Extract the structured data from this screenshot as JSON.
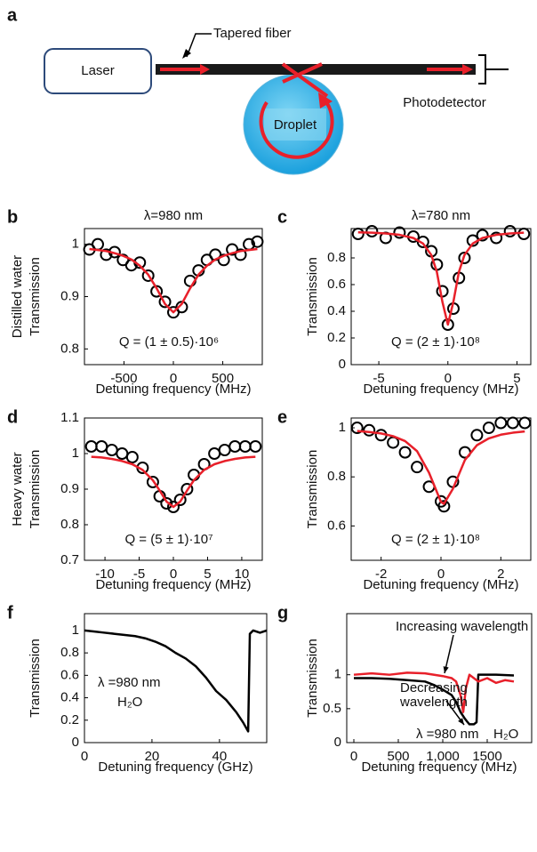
{
  "diagram": {
    "panel_label": "a",
    "laser": "Laser",
    "fiber": "Tapered fiber",
    "droplet": "Droplet",
    "detector": "Photodetector"
  },
  "chart_data": [
    {
      "type": "scatter",
      "panel_label": "b",
      "title": "λ=980 nm",
      "ylabel": [
        "Distilled water",
        "Transmission"
      ],
      "xlabel": "Detuning frequency (MHz)",
      "annotations": [
        "Q = (1 ± 0.5)·10⁶"
      ],
      "xlim": [
        -900,
        900
      ],
      "xticks": [
        -500,
        0,
        500
      ],
      "ylim": [
        0.77,
        1.03
      ],
      "yticks": [
        0.8,
        0.9,
        1
      ],
      "series": [
        {
          "mode": "markers",
          "color": "#000000",
          "x": [
            -850,
            -765,
            -680,
            -595,
            -510,
            -425,
            -340,
            -255,
            -170,
            -85,
            0,
            85,
            170,
            255,
            340,
            425,
            510,
            595,
            680,
            765,
            850
          ],
          "values": [
            0.99,
            1.0,
            0.98,
            0.985,
            0.97,
            0.96,
            0.965,
            0.94,
            0.91,
            0.89,
            0.87,
            0.88,
            0.93,
            0.95,
            0.97,
            0.98,
            0.97,
            0.99,
            0.98,
            1.0,
            1.005
          ]
        },
        {
          "mode": "line",
          "color": "#e8202a",
          "x": [
            -850,
            -765,
            -680,
            -595,
            -510,
            -425,
            -340,
            -255,
            -170,
            -85,
            0,
            85,
            170,
            255,
            340,
            425,
            510,
            595,
            680,
            765,
            850
          ],
          "values": [
            0.991,
            0.989,
            0.987,
            0.983,
            0.978,
            0.971,
            0.959,
            0.942,
            0.916,
            0.886,
            0.87,
            0.886,
            0.916,
            0.942,
            0.959,
            0.971,
            0.978,
            0.983,
            0.987,
            0.989,
            0.991
          ]
        }
      ]
    },
    {
      "type": "scatter",
      "panel_label": "c",
      "title": "λ=780 nm",
      "ylabel": [
        "Transmission"
      ],
      "xlabel": "Detuning frequency (MHz)",
      "annotations": [
        "Q = (2 ± 1)·10⁸"
      ],
      "xlim": [
        -7,
        6
      ],
      "xticks": [
        -5,
        0,
        5
      ],
      "ylim": [
        0,
        1.02
      ],
      "yticks": [
        0,
        0.2,
        0.4,
        0.6,
        0.8
      ],
      "series": [
        {
          "mode": "markers",
          "color": "#000000",
          "x": [
            -6.5,
            -5.5,
            -4.5,
            -3.5,
            -2.5,
            -1.8,
            -1.2,
            -0.8,
            -0.4,
            0,
            0.4,
            0.8,
            1.2,
            1.8,
            2.5,
            3.5,
            4.5,
            5.5
          ],
          "values": [
            0.98,
            1.0,
            0.95,
            0.99,
            0.96,
            0.92,
            0.85,
            0.75,
            0.55,
            0.3,
            0.42,
            0.65,
            0.8,
            0.93,
            0.97,
            0.95,
            1.0,
            0.98
          ]
        },
        {
          "mode": "line",
          "color": "#e8202a",
          "x": [
            -6.5,
            -5.5,
            -4.5,
            -3.5,
            -2.5,
            -1.8,
            -1.2,
            -0.8,
            -0.4,
            0,
            0.4,
            0.8,
            1.2,
            1.8,
            2.5,
            3.5,
            4.5,
            5.5
          ],
          "values": [
            0.992,
            0.989,
            0.983,
            0.973,
            0.949,
            0.908,
            0.822,
            0.696,
            0.472,
            0.3,
            0.472,
            0.696,
            0.822,
            0.908,
            0.949,
            0.973,
            0.983,
            0.989
          ]
        }
      ]
    },
    {
      "type": "scatter",
      "panel_label": "d",
      "ylabel": [
        "Heavy water",
        "Transmission"
      ],
      "xlabel": "Detuning frequency (MHz)",
      "annotations": [
        "Q = (5 ± 1)·10⁷"
      ],
      "xlim": [
        -13,
        13
      ],
      "xticks": [
        -10,
        -5,
        0,
        5,
        10
      ],
      "ylim": [
        0.7,
        1.1
      ],
      "yticks": [
        0.7,
        0.8,
        0.9,
        1,
        1.1
      ],
      "series": [
        {
          "mode": "markers",
          "color": "#000000",
          "x": [
            -12,
            -10.5,
            -9,
            -7.5,
            -6,
            -4.5,
            -3,
            -2,
            -1,
            0,
            1,
            2,
            3,
            4.5,
            6,
            7.5,
            9,
            10.5,
            12
          ],
          "values": [
            1.02,
            1.02,
            1.01,
            1.0,
            0.99,
            0.96,
            0.92,
            0.88,
            0.86,
            0.85,
            0.87,
            0.9,
            0.94,
            0.97,
            1.0,
            1.01,
            1.02,
            1.02,
            1.02
          ]
        },
        {
          "mode": "line",
          "color": "#e8202a",
          "x": [
            -12,
            -10.5,
            -9,
            -7.5,
            -6,
            -4.5,
            -3,
            -2,
            -1,
            0,
            1,
            2,
            3,
            4.5,
            6,
            7.5,
            9,
            10.5,
            12
          ],
          "values": [
            0.991,
            0.989,
            0.985,
            0.979,
            0.97,
            0.954,
            0.925,
            0.896,
            0.865,
            0.85,
            0.865,
            0.896,
            0.925,
            0.954,
            0.97,
            0.979,
            0.985,
            0.989,
            0.991
          ]
        }
      ]
    },
    {
      "type": "scatter",
      "panel_label": "e",
      "ylabel": [
        "Transmission"
      ],
      "xlabel": "Detuning frequency (MHz)",
      "annotations": [
        "Q = (2 ± 1)·10⁸"
      ],
      "xlim": [
        -3,
        3
      ],
      "xticks": [
        -2,
        0,
        2
      ],
      "ylim": [
        0.46,
        1.04
      ],
      "yticks": [
        0.6,
        0.8,
        1
      ],
      "series": [
        {
          "mode": "markers",
          "color": "#000000",
          "x": [
            -2.8,
            -2.4,
            -2,
            -1.6,
            -1.2,
            -0.8,
            -0.4,
            0,
            0.1,
            0.4,
            0.8,
            1.2,
            1.6,
            2,
            2.4,
            2.8
          ],
          "values": [
            1.0,
            0.99,
            0.97,
            0.94,
            0.9,
            0.84,
            0.76,
            0.7,
            0.68,
            0.78,
            0.9,
            0.97,
            1.0,
            1.02,
            1.02,
            1.02
          ]
        },
        {
          "mode": "line",
          "color": "#e8202a",
          "x": [
            -2.8,
            -2.4,
            -2,
            -1.6,
            -1.2,
            -0.8,
            -0.4,
            0,
            0.1,
            0.4,
            0.8,
            1.2,
            1.6,
            2,
            2.4,
            2.8
          ],
          "values": [
            0.987,
            0.983,
            0.977,
            0.966,
            0.946,
            0.905,
            0.817,
            0.698,
            0.69,
            0.752,
            0.869,
            0.929,
            0.957,
            0.972,
            0.98,
            0.985
          ]
        }
      ]
    },
    {
      "type": "line",
      "panel_label": "f",
      "ylabel": [
        "Transmission"
      ],
      "xlabel": "Detuning frequency (GHz)",
      "annotations": [
        "λ =980 nm",
        "H₂O"
      ],
      "xlim": [
        0,
        54
      ],
      "xticks": [
        0,
        20,
        40
      ],
      "ylim": [
        0,
        1.15
      ],
      "yticks": [
        0,
        0.2,
        0.4,
        0.6,
        0.8,
        1
      ],
      "series": [
        {
          "mode": "line",
          "color": "#000000",
          "x": [
            0,
            3,
            6,
            9,
            12,
            15,
            18,
            21,
            24,
            27,
            30,
            33,
            36,
            39,
            42,
            45,
            47,
            48.5,
            49,
            50,
            52,
            54
          ],
          "values": [
            1,
            0.99,
            0.98,
            0.97,
            0.96,
            0.95,
            0.93,
            0.9,
            0.86,
            0.8,
            0.75,
            0.68,
            0.58,
            0.46,
            0.38,
            0.27,
            0.18,
            0.1,
            0.97,
            1,
            0.98,
            1
          ]
        }
      ]
    },
    {
      "type": "line",
      "panel_label": "g",
      "ylabel": [
        "Transmission"
      ],
      "xlabel": "Detuning frequency (MHz)",
      "annotations": [
        "Increasing wavelength",
        "Decreasing",
        "wavelength",
        "λ =980 nm",
        "H₂O"
      ],
      "xlim": [
        -80,
        2000
      ],
      "xticks": [
        0,
        500,
        {
          "value": 1000,
          "label": "1,000"
        },
        1500
      ],
      "ylim": [
        0,
        1.9
      ],
      "yticks": [
        0,
        0.5,
        1
      ],
      "series": [
        {
          "mode": "line",
          "color": "#000000",
          "x": [
            0,
            200,
            400,
            600,
            800,
            900,
            1000,
            1100,
            1150,
            1200,
            1250,
            1280,
            1300,
            1350,
            1380,
            1400,
            1500,
            1600,
            1800
          ],
          "values": [
            0.95,
            0.95,
            0.94,
            0.92,
            0.9,
            0.85,
            0.78,
            0.7,
            0.6,
            0.45,
            0.35,
            0.3,
            0.27,
            0.27,
            0.3,
            1.0,
            1.0,
            1.0,
            0.99
          ]
        },
        {
          "mode": "line",
          "color": "#e8202a",
          "x": [
            0,
            200,
            400,
            600,
            800,
            1000,
            1100,
            1150,
            1200,
            1230,
            1260,
            1300,
            1400,
            1500,
            1600,
            1700,
            1800
          ],
          "values": [
            1,
            1.02,
            1.0,
            1.03,
            1.02,
            0.98,
            0.95,
            0.9,
            0.7,
            0.45,
            0.8,
            1.0,
            0.9,
            0.95,
            0.88,
            0.92,
            0.9
          ]
        }
      ]
    }
  ]
}
